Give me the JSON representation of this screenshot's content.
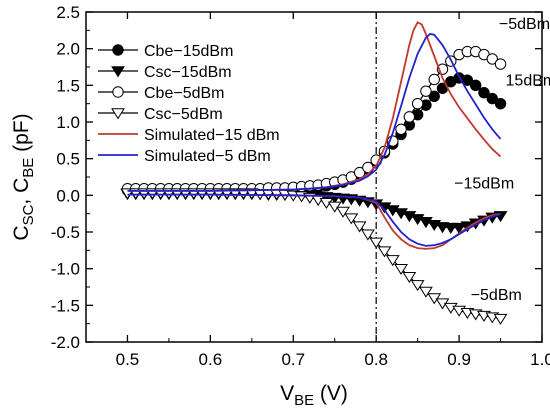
{
  "chart_data": {
    "type": "line",
    "xlabel": {
      "main": "V",
      "sub": "BE",
      "unit": " (V)"
    },
    "ylabel": {
      "c1": "C",
      "s1": "SC",
      "sep": ", ",
      "c2": "C",
      "s2": "BE",
      "unit": " (pF)"
    },
    "xlim": [
      0.45,
      1.0
    ],
    "ylim": [
      -2.0,
      2.5
    ],
    "xticks": [
      "0.5",
      "0.6",
      "0.7",
      "0.8",
      "0.9",
      "1.0"
    ],
    "yticks": [
      "2.5",
      "2.0",
      "1.5",
      "1.0",
      "0.5",
      "0.0",
      "-0.5",
      "-1.0",
      "-1.5",
      "-2.0"
    ],
    "vline_x": 0.8,
    "legend_position": "top-left",
    "series": [
      {
        "name": "Cbe−15dBm",
        "marker": "circle-filled",
        "color": "#000000",
        "x": [
          0.5,
          0.51,
          0.52,
          0.53,
          0.54,
          0.55,
          0.56,
          0.57,
          0.58,
          0.59,
          0.6,
          0.61,
          0.62,
          0.63,
          0.64,
          0.65,
          0.66,
          0.67,
          0.68,
          0.69,
          0.7,
          0.71,
          0.72,
          0.73,
          0.74,
          0.75,
          0.76,
          0.77,
          0.78,
          0.79,
          0.8,
          0.81,
          0.82,
          0.83,
          0.84,
          0.85,
          0.86,
          0.87,
          0.88,
          0.89,
          0.9,
          0.91,
          0.92,
          0.93,
          0.94,
          0.95
        ],
        "y": [
          0.07,
          0.07,
          0.07,
          0.07,
          0.07,
          0.07,
          0.07,
          0.07,
          0.07,
          0.07,
          0.07,
          0.07,
          0.07,
          0.07,
          0.07,
          0.07,
          0.07,
          0.07,
          0.07,
          0.08,
          0.08,
          0.09,
          0.1,
          0.11,
          0.13,
          0.15,
          0.18,
          0.22,
          0.28,
          0.36,
          0.47,
          0.58,
          0.7,
          0.83,
          0.96,
          1.1,
          1.23,
          1.35,
          1.46,
          1.55,
          1.6,
          1.57,
          1.5,
          1.4,
          1.32,
          1.25
        ]
      },
      {
        "name": "Csc−15dBm",
        "marker": "triangle-down-filled",
        "color": "#000000",
        "x": [
          0.5,
          0.51,
          0.52,
          0.53,
          0.54,
          0.55,
          0.56,
          0.57,
          0.58,
          0.59,
          0.6,
          0.61,
          0.62,
          0.63,
          0.64,
          0.65,
          0.66,
          0.67,
          0.68,
          0.69,
          0.7,
          0.71,
          0.72,
          0.73,
          0.74,
          0.75,
          0.76,
          0.77,
          0.78,
          0.79,
          0.8,
          0.81,
          0.82,
          0.83,
          0.84,
          0.85,
          0.86,
          0.87,
          0.88,
          0.89,
          0.9,
          0.91,
          0.92,
          0.93,
          0.94,
          0.95
        ],
        "y": [
          0.02,
          0.02,
          0.02,
          0.02,
          0.02,
          0.02,
          0.02,
          0.02,
          0.02,
          0.02,
          0.02,
          0.02,
          0.02,
          0.02,
          0.02,
          0.02,
          0.02,
          0.01,
          0.01,
          0.01,
          0.01,
          0.0,
          0.0,
          -0.01,
          -0.02,
          -0.03,
          -0.04,
          -0.05,
          -0.07,
          -0.09,
          -0.12,
          -0.16,
          -0.2,
          -0.24,
          -0.28,
          -0.32,
          -0.36,
          -0.4,
          -0.43,
          -0.44,
          -0.44,
          -0.42,
          -0.38,
          -0.34,
          -0.3,
          -0.28
        ]
      },
      {
        "name": "Cbe−5dBm",
        "marker": "circle-open",
        "color": "#000000",
        "x": [
          0.5,
          0.51,
          0.52,
          0.53,
          0.54,
          0.55,
          0.56,
          0.57,
          0.58,
          0.59,
          0.6,
          0.61,
          0.62,
          0.63,
          0.64,
          0.65,
          0.66,
          0.67,
          0.68,
          0.69,
          0.7,
          0.71,
          0.72,
          0.73,
          0.74,
          0.75,
          0.76,
          0.77,
          0.78,
          0.79,
          0.8,
          0.81,
          0.82,
          0.83,
          0.84,
          0.85,
          0.86,
          0.87,
          0.88,
          0.89,
          0.9,
          0.91,
          0.92,
          0.93,
          0.94,
          0.95
        ],
        "y": [
          0.09,
          0.09,
          0.09,
          0.09,
          0.09,
          0.09,
          0.09,
          0.09,
          0.09,
          0.09,
          0.09,
          0.09,
          0.09,
          0.09,
          0.09,
          0.09,
          0.09,
          0.1,
          0.1,
          0.1,
          0.11,
          0.12,
          0.13,
          0.14,
          0.16,
          0.18,
          0.21,
          0.25,
          0.31,
          0.38,
          0.48,
          0.6,
          0.74,
          0.9,
          1.07,
          1.25,
          1.42,
          1.58,
          1.72,
          1.83,
          1.92,
          1.96,
          1.96,
          1.92,
          1.86,
          1.79
        ]
      },
      {
        "name": "Csc−5dBm",
        "marker": "triangle-down-open",
        "color": "#000000",
        "x": [
          0.5,
          0.51,
          0.52,
          0.53,
          0.54,
          0.55,
          0.56,
          0.57,
          0.58,
          0.59,
          0.6,
          0.61,
          0.62,
          0.63,
          0.64,
          0.65,
          0.66,
          0.67,
          0.68,
          0.69,
          0.7,
          0.71,
          0.72,
          0.73,
          0.74,
          0.75,
          0.76,
          0.77,
          0.78,
          0.79,
          0.8,
          0.81,
          0.82,
          0.83,
          0.84,
          0.85,
          0.86,
          0.87,
          0.88,
          0.89,
          0.9,
          0.91,
          0.92,
          0.93,
          0.94,
          0.95
        ],
        "y": [
          0.03,
          0.03,
          0.03,
          0.03,
          0.03,
          0.03,
          0.03,
          0.03,
          0.03,
          0.03,
          0.03,
          0.03,
          0.03,
          0.03,
          0.03,
          0.03,
          0.02,
          0.02,
          0.02,
          0.01,
          0.0,
          -0.01,
          -0.03,
          -0.06,
          -0.1,
          -0.15,
          -0.22,
          -0.31,
          -0.42,
          -0.53,
          -0.64,
          -0.76,
          -0.88,
          -1.0,
          -1.11,
          -1.22,
          -1.31,
          -1.4,
          -1.47,
          -1.53,
          -1.57,
          -1.6,
          -1.62,
          -1.64,
          -1.66,
          -1.68
        ]
      },
      {
        "name": "Simulated−15 dBm",
        "marker": "none",
        "color": "#c0392b",
        "x": [
          0.5,
          0.55,
          0.6,
          0.65,
          0.7,
          0.72,
          0.74,
          0.76,
          0.78,
          0.79,
          0.8,
          0.81,
          0.82,
          0.83,
          0.84,
          0.845,
          0.85,
          0.855,
          0.86,
          0.87,
          0.88,
          0.89,
          0.9,
          0.91,
          0.92,
          0.93,
          0.94,
          0.95
        ],
        "y": [
          0.06,
          0.06,
          0.06,
          0.07,
          0.08,
          0.09,
          0.11,
          0.15,
          0.22,
          0.29,
          0.4,
          0.65,
          1.05,
          1.55,
          2.05,
          2.25,
          2.36,
          2.33,
          2.2,
          1.9,
          1.6,
          1.38,
          1.2,
          1.05,
          0.9,
          0.76,
          0.63,
          0.53
        ]
      },
      {
        "name": "Simulated−15 dBm (Csc)",
        "marker": "none",
        "color": "#c0392b",
        "legend": false,
        "x": [
          0.5,
          0.6,
          0.7,
          0.75,
          0.78,
          0.8,
          0.81,
          0.82,
          0.83,
          0.84,
          0.85,
          0.86,
          0.87,
          0.88,
          0.89,
          0.9,
          0.91,
          0.92,
          0.93,
          0.94,
          0.95
        ],
        "y": [
          0.01,
          0.01,
          0.0,
          -0.01,
          -0.03,
          -0.1,
          -0.3,
          -0.48,
          -0.6,
          -0.68,
          -0.72,
          -0.73,
          -0.72,
          -0.68,
          -0.6,
          -0.52,
          -0.44,
          -0.37,
          -0.31,
          -0.27,
          -0.25
        ]
      },
      {
        "name": "Simulated−5 dBm",
        "marker": "none",
        "color": "#2222cc",
        "x": [
          0.5,
          0.55,
          0.6,
          0.65,
          0.7,
          0.72,
          0.74,
          0.76,
          0.78,
          0.79,
          0.8,
          0.81,
          0.82,
          0.83,
          0.84,
          0.85,
          0.86,
          0.865,
          0.87,
          0.88,
          0.89,
          0.9,
          0.91,
          0.92,
          0.93,
          0.94,
          0.95
        ],
        "y": [
          0.06,
          0.06,
          0.06,
          0.07,
          0.08,
          0.09,
          0.11,
          0.14,
          0.2,
          0.26,
          0.35,
          0.55,
          0.85,
          1.22,
          1.6,
          1.93,
          2.15,
          2.2,
          2.19,
          2.05,
          1.85,
          1.62,
          1.42,
          1.24,
          1.06,
          0.9,
          0.77
        ]
      },
      {
        "name": "Simulated−5 dBm (Csc)",
        "marker": "none",
        "color": "#2222cc",
        "legend": false,
        "x": [
          0.5,
          0.6,
          0.7,
          0.75,
          0.78,
          0.8,
          0.81,
          0.82,
          0.83,
          0.84,
          0.85,
          0.86,
          0.87,
          0.88,
          0.89,
          0.9,
          0.91,
          0.92,
          0.93,
          0.94,
          0.95
        ],
        "y": [
          0.01,
          0.01,
          0.0,
          -0.01,
          -0.03,
          -0.08,
          -0.2,
          -0.36,
          -0.5,
          -0.6,
          -0.66,
          -0.69,
          -0.68,
          -0.65,
          -0.6,
          -0.53,
          -0.46,
          -0.4,
          -0.34,
          -0.29,
          -0.26
        ]
      }
    ],
    "annotations": [
      {
        "text": "−5dBm",
        "x": 0.948,
        "y": 2.27,
        "anchor": "start"
      },
      {
        "text": "15dBm",
        "x": 0.956,
        "y": 1.5,
        "anchor": "start"
      },
      {
        "text": "−15dBm",
        "x": 0.894,
        "y": 0.09,
        "anchor": "start"
      },
      {
        "text": "−5dBm",
        "x": 0.914,
        "y": -1.43,
        "anchor": "start"
      }
    ]
  }
}
